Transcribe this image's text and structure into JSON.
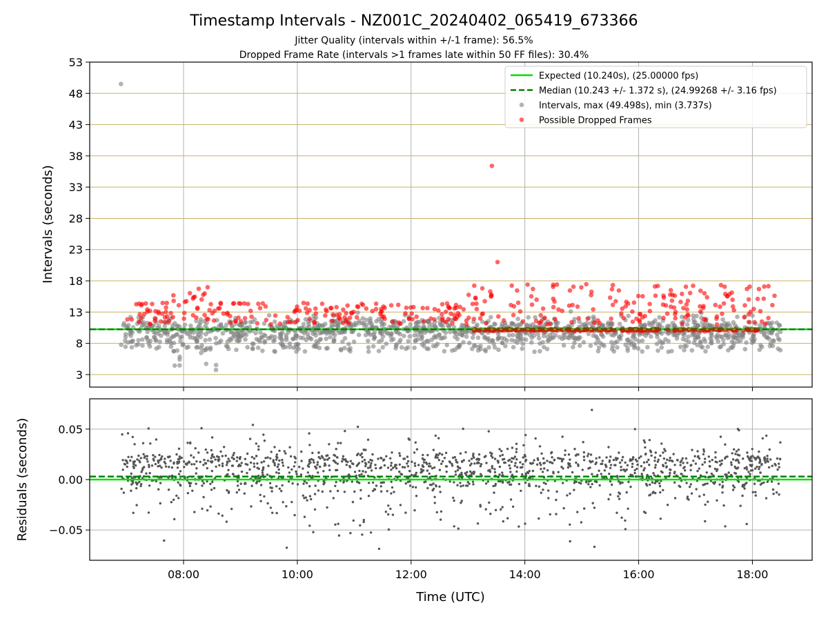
{
  "chart_data": {
    "title": "Timestamp Intervals - NZ001C_20240402_065419_673366",
    "subtitle_lines": [
      "Jitter Quality (intervals within +/-1 frame): 56.5%",
      "Dropped Frame Rate (intervals >1 frames late within 50 FF files): 30.4%"
    ],
    "xlabel": "Time (UTC)",
    "x_unit": "hours UTC",
    "x_range": [
      6.35,
      19.05
    ],
    "x_ticks": [
      {
        "value": 8,
        "label": "08:00"
      },
      {
        "value": 10,
        "label": "10:00"
      },
      {
        "value": 12,
        "label": "12:00"
      },
      {
        "value": 14,
        "label": "14:00"
      },
      {
        "value": 16,
        "label": "16:00"
      },
      {
        "value": 18,
        "label": "18:00"
      }
    ],
    "colors": {
      "expected": "#00e000",
      "median": "#008000",
      "intervals": "#808080",
      "dropped": "#ff0000",
      "residuals": "#555555",
      "hgrid_top": "#c8b060",
      "grid": "#b0b0b0"
    },
    "top_panel": {
      "type": "scatter",
      "ylabel": "Intervals (seconds)",
      "ylim": [
        1.0,
        53
      ],
      "yticks": [
        3,
        8,
        13,
        18,
        23,
        28,
        33,
        38,
        43,
        48,
        53
      ],
      "expected_value": 10.24,
      "median_value": 10.243,
      "x_start": 6.9,
      "x_end": 18.5,
      "legend": {
        "position": "top-right",
        "entries": [
          {
            "label": "Expected (10.240s), (25.00000 fps)",
            "kind": "solid-line",
            "color_key": "expected"
          },
          {
            "label": "Median (10.243 +/- 1.372 s), (24.99268 +/- 3.16 fps)",
            "kind": "dashed-line",
            "color_key": "median"
          },
          {
            "label": "Intervals, max (49.498s), min (3.737s)",
            "kind": "dot",
            "color_key": "intervals"
          },
          {
            "label": "Possible Dropped Frames",
            "kind": "dot",
            "color_key": "dropped"
          }
        ]
      },
      "notable_points": [
        {
          "x": 6.9,
          "y": 49.498,
          "series": "intervals"
        },
        {
          "x": 13.42,
          "y": 36.4,
          "series": "dropped"
        },
        {
          "x": 13.52,
          "y": 21.0,
          "series": "dropped"
        },
        {
          "x": 8.57,
          "y": 3.74,
          "series": "intervals"
        }
      ]
    },
    "bottom_panel": {
      "type": "scatter",
      "ylabel": "Residuals (seconds)",
      "ylim": [
        -0.08,
        0.08
      ],
      "yticks": [
        {
          "value": 0.05,
          "label": "0.05"
        },
        {
          "value": 0.0,
          "label": "0.00"
        },
        {
          "value": -0.05,
          "label": "−0.05"
        }
      ],
      "expected_value": 0.0,
      "median_value": 0.003
    }
  }
}
